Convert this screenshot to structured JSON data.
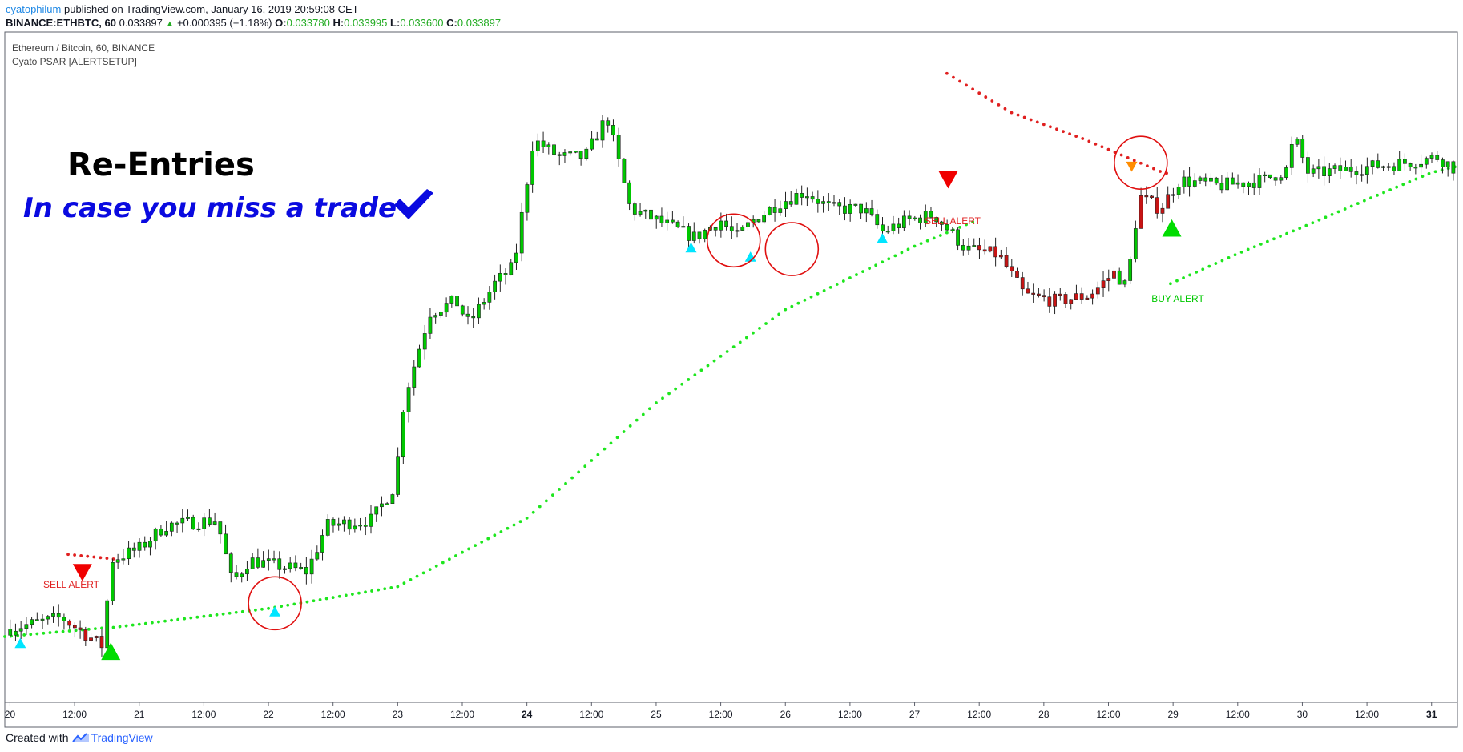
{
  "header": {
    "author": "cyatophilum",
    "published_text": "published on TradingView.com, January 16, 2019 20:59:08 CET",
    "symbol": "BINANCE:ETHBTC, 60",
    "last_price": "0.033897",
    "change": "+0.000395 (+1.18%)",
    "o_label": "O:",
    "o_value": "0.033780",
    "h_label": "H:",
    "h_value": "0.033995",
    "l_label": "L:",
    "l_value": "0.033600",
    "c_label": "C:",
    "c_value": "0.033897"
  },
  "pane": {
    "title": "Ethereum / Bitcoin, 60, BINANCE",
    "indicator": "Cyato PSAR [ALERTSETUP]"
  },
  "annotations": {
    "headline": "Re-Entries",
    "subhead": "In case you miss a trade",
    "sell_alert_1": "SELL ALERT",
    "sell_alert_2": "SELL ALERT",
    "buy_alert": "BUY ALERT"
  },
  "colors": {
    "bull": "#00c800",
    "bear": "#c81414",
    "psar_bull": "#1ee61e",
    "psar_bear": "#e02020",
    "reentry": "#00e5ff",
    "orange": "#ff8c00",
    "circle": "#e01010",
    "headline": "#000000",
    "subhead": "#0a0ae0"
  },
  "footer": {
    "created_with": "Created with",
    "brand": "TradingView"
  },
  "chart_data": {
    "type": "candlestick",
    "x_ticks": [
      "20",
      "12:00",
      "21",
      "12:00",
      "22",
      "12:00",
      "23",
      "12:00",
      "24",
      "12:00",
      "25",
      "12:00",
      "26",
      "12:00",
      "27",
      "12:00",
      "28",
      "12:00",
      "29",
      "12:00",
      "30",
      "12:00",
      "31"
    ],
    "x_ticks_bold": [
      "24",
      "31"
    ],
    "bars_per_day": 24,
    "x_start_day": 19.96,
    "x_end_day": 31.2,
    "close_path": [
      [
        19.97,
        0.026
      ],
      [
        20.4,
        0.0262
      ],
      [
        20.72,
        0.0257
      ],
      [
        20.78,
        0.0272
      ],
      [
        21.0,
        0.0274
      ],
      [
        21.2,
        0.0278
      ],
      [
        21.6,
        0.0279
      ],
      [
        21.72,
        0.0268
      ],
      [
        21.85,
        0.0272
      ],
      [
        22.3,
        0.027
      ],
      [
        22.45,
        0.0278
      ],
      [
        22.8,
        0.0279
      ],
      [
        22.98,
        0.0285
      ],
      [
        23.05,
        0.03
      ],
      [
        23.25,
        0.0315
      ],
      [
        23.45,
        0.0317
      ],
      [
        23.55,
        0.0313
      ],
      [
        23.75,
        0.032
      ],
      [
        23.9,
        0.0323
      ],
      [
        24.05,
        0.0345
      ],
      [
        24.25,
        0.0342
      ],
      [
        24.45,
        0.0342
      ],
      [
        24.62,
        0.0349
      ],
      [
        24.8,
        0.0333
      ],
      [
        25.1,
        0.033
      ],
      [
        25.3,
        0.0328
      ],
      [
        25.5,
        0.0331
      ],
      [
        25.62,
        0.0328
      ],
      [
        25.75,
        0.0331
      ],
      [
        25.95,
        0.0334
      ],
      [
        26.15,
        0.0336
      ],
      [
        26.35,
        0.0333
      ],
      [
        26.6,
        0.0333
      ],
      [
        26.75,
        0.0329
      ],
      [
        26.95,
        0.0331
      ],
      [
        27.15,
        0.0332
      ],
      [
        27.4,
        0.0326
      ],
      [
        27.65,
        0.0325
      ],
      [
        27.85,
        0.0318
      ],
      [
        28.1,
        0.0317
      ],
      [
        28.35,
        0.0318
      ],
      [
        28.55,
        0.0322
      ],
      [
        28.65,
        0.0319
      ],
      [
        28.68,
        0.0327
      ],
      [
        28.75,
        0.0335
      ],
      [
        28.9,
        0.0333
      ],
      [
        29.05,
        0.0338
      ],
      [
        29.35,
        0.0337
      ],
      [
        29.7,
        0.0338
      ],
      [
        29.9,
        0.034
      ],
      [
        29.93,
        0.0346
      ],
      [
        30.05,
        0.0339
      ],
      [
        30.4,
        0.034
      ],
      [
        30.8,
        0.0341
      ],
      [
        31.05,
        0.0342
      ],
      [
        31.2,
        0.03397
      ]
    ],
    "bearish_segments": [
      [
        20.45,
        20.75
      ],
      [
        27.5,
        28.55
      ],
      [
        28.72,
        28.98
      ]
    ],
    "psar_bull_1": [
      [
        19.96,
        0.02587
      ],
      [
        20.72,
        0.02602
      ]
    ],
    "psar_bull_2": [
      [
        20.8,
        0.02603
      ],
      [
        22.0,
        0.02636
      ],
      [
        23.0,
        0.02674
      ],
      [
        24.0,
        0.02793
      ],
      [
        25.0,
        0.02993
      ],
      [
        26.0,
        0.03155
      ],
      [
        27.0,
        0.03265
      ],
      [
        27.48,
        0.0331
      ]
    ],
    "psar_bull_3": [
      [
        28.98,
        0.032
      ],
      [
        29.5,
        0.03252
      ],
      [
        30.0,
        0.03298
      ],
      [
        30.5,
        0.03346
      ],
      [
        31.0,
        0.03393
      ],
      [
        31.2,
        0.03404
      ]
    ],
    "psar_bear_1": [
      [
        20.45,
        0.0273
      ],
      [
        20.8,
        0.02722
      ]
    ],
    "psar_bear_2": [
      [
        27.25,
        0.03565
      ],
      [
        27.75,
        0.03497
      ],
      [
        28.3,
        0.03452
      ],
      [
        28.9,
        0.03395
      ],
      [
        28.98,
        0.0339
      ]
    ],
    "y_min": 0.0248,
    "y_max": 0.0363,
    "reentry_markers": [
      [
        20.08,
        0.02575
      ],
      [
        22.05,
        0.0263
      ],
      [
        25.27,
        0.03262
      ],
      [
        25.73,
        0.03246
      ],
      [
        26.75,
        0.03278
      ]
    ],
    "orange_marker": [
      28.68,
      0.03404
    ],
    "sell_markers": [
      [
        20.56,
        0.027
      ],
      [
        27.26,
        0.03382
      ]
    ],
    "buy_markers": [
      [
        20.78,
        0.0256
      ],
      [
        28.99,
        0.03295
      ]
    ],
    "circles": [
      [
        22.05,
        0.02645
      ],
      [
        25.6,
        0.03275
      ],
      [
        26.05,
        0.0326
      ],
      [
        28.75,
        0.0341
      ]
    ]
  }
}
